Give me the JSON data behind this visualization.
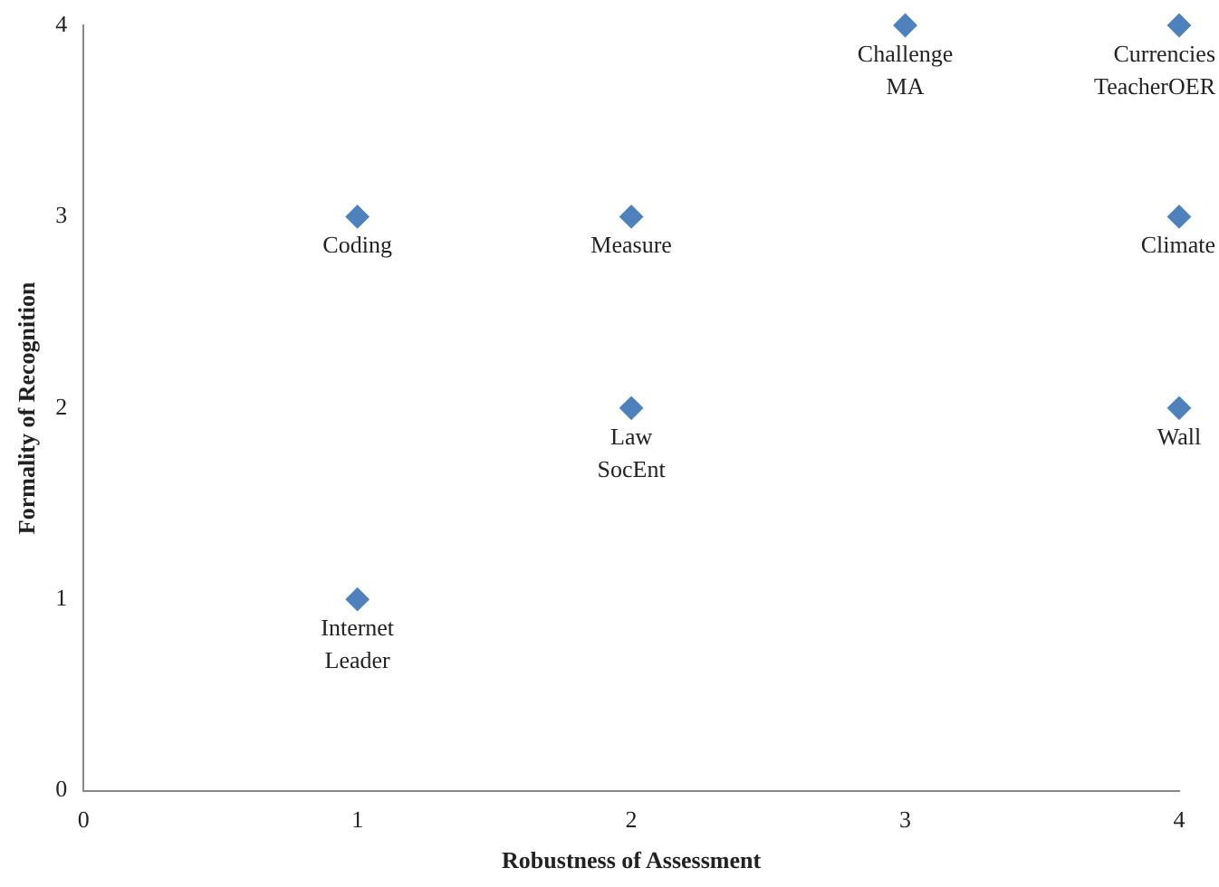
{
  "chart_data": {
    "type": "scatter",
    "xlabel": "Robustness of Assessment",
    "ylabel": "Formality of Recognition",
    "x": [
      1,
      2,
      3,
      4,
      4,
      2,
      4,
      1
    ],
    "values": [
      3,
      3,
      4,
      4,
      3,
      2,
      2,
      1
    ],
    "color": "#4f81bd",
    "marker": "diamond",
    "xlim": [
      0,
      4
    ],
    "xticks": [
      0,
      1,
      2,
      3,
      4
    ],
    "ylim": [
      0,
      4
    ],
    "yticks": [
      0,
      1,
      2,
      3,
      4
    ],
    "grid": false,
    "legend": false,
    "annotations": [
      {
        "text": "Coding",
        "x": 1,
        "y": 3
      },
      {
        "text": "Measure",
        "x": 2,
        "y": 3
      },
      {
        "text": "Challenge",
        "x": 3,
        "y": 4
      },
      {
        "text": "MA",
        "x": 3,
        "y": 4
      },
      {
        "text": "Currencies",
        "x": 4,
        "y": 4
      },
      {
        "text": "TeacherOER",
        "x": 4,
        "y": 4
      },
      {
        "text": "Climate",
        "x": 4,
        "y": 3
      },
      {
        "text": "Law",
        "x": 2,
        "y": 2
      },
      {
        "text": "SocEnt",
        "x": 2,
        "y": 2
      },
      {
        "text": "Wall",
        "x": 4,
        "y": 2
      },
      {
        "text": "Internet",
        "x": 1,
        "y": 1
      },
      {
        "text": "Leader",
        "x": 1,
        "y": 1
      }
    ]
  }
}
